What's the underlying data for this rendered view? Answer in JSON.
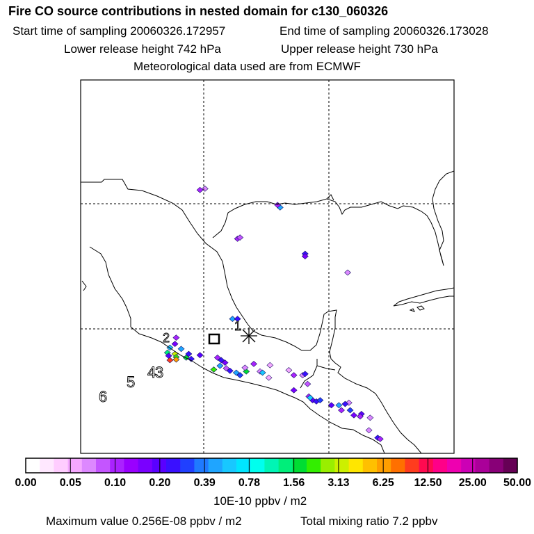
{
  "header": {
    "title": "Fire CO source contributions in nested domain for c130_060326",
    "start_sampling": "Start time of sampling 20060326.172957",
    "end_sampling": "End time of sampling 20060326.173028",
    "lower_release": "Lower release height  742 hPa",
    "upper_release": "Upper release height  730 hPa",
    "met_data": "Meteorological data used are from ECMWF"
  },
  "map": {
    "release_labels": [
      "1",
      "2",
      "3",
      "4",
      "5",
      "6"
    ],
    "release_marker": "asterisk",
    "receptor_marker": "open-square"
  },
  "colorbar": {
    "colors": [
      "#ffffff",
      "#ffe8ff",
      "#ffcdff",
      "#f5a8ff",
      "#dd88ff",
      "#c455ff",
      "#aa22ff",
      "#9900ff",
      "#7a00ff",
      "#5a00ff",
      "#3a10ff",
      "#2040ff",
      "#1f7aff",
      "#1fa5ff",
      "#18c8ff",
      "#00e6ff",
      "#00ffee",
      "#00f5b5",
      "#00ee7a",
      "#00dd33",
      "#33ee00",
      "#99ee00",
      "#ccf000",
      "#ffe600",
      "#ffc000",
      "#ff9e00",
      "#ff7000",
      "#ff3c1e",
      "#ff0a50",
      "#ff0088",
      "#ee00b0",
      "#cc00b5",
      "#aa0099",
      "#880077",
      "#660055"
    ],
    "tick_labels": [
      "0.00",
      "0.05",
      "0.10",
      "0.20",
      "0.39",
      "0.78",
      "1.56",
      "3.13",
      "6.25",
      "12.50",
      "25.00",
      "50.00"
    ],
    "units": "10E-10 ppbv / m2"
  },
  "footer": {
    "max_value": "Maximum value  0.256E-08 ppbv / m2",
    "total_mixing": "Total mixing ratio       7.2 ppbv"
  },
  "plumes": [
    {
      "lon": -95.3,
      "lat": 31.1,
      "color": "#aa22ff"
    },
    {
      "lon": -94.9,
      "lat": 31.2,
      "color": "#dd88ff"
    },
    {
      "lon": -88.9,
      "lat": 29.7,
      "color": "#1fa5ff"
    },
    {
      "lon": -89.1,
      "lat": 29.9,
      "color": "#aa22ff"
    },
    {
      "lon": -92.3,
      "lat": 27.2,
      "color": "#aa22ff"
    },
    {
      "lon": -92.1,
      "lat": 27.3,
      "color": "#c455ff"
    },
    {
      "lon": -86.9,
      "lat": 26.0,
      "color": "#3a10ff"
    },
    {
      "lon": -86.9,
      "lat": 25.8,
      "color": "#7a00ff"
    },
    {
      "lon": -83.5,
      "lat": 24.5,
      "color": "#dd88ff"
    },
    {
      "lon": -92.7,
      "lat": 20.8,
      "color": "#1fa5ff"
    },
    {
      "lon": -92.3,
      "lat": 20.8,
      "color": "#3a10ff"
    },
    {
      "lon": -97.2,
      "lat": 19.3,
      "color": "#aa22ff"
    },
    {
      "lon": -97.3,
      "lat": 18.8,
      "color": "#7a00ff"
    },
    {
      "lon": -97.7,
      "lat": 18.5,
      "color": "#18c8ff"
    },
    {
      "lon": -96.8,
      "lat": 18.4,
      "color": "#1fa5ff"
    },
    {
      "lon": -96.2,
      "lat": 18.0,
      "color": "#3a10ff"
    },
    {
      "lon": -97.9,
      "lat": 18.1,
      "color": "#00ee7a"
    },
    {
      "lon": -97.3,
      "lat": 18.0,
      "color": "#ccf000"
    },
    {
      "lon": -97.8,
      "lat": 17.85,
      "color": "#5a00ff"
    },
    {
      "lon": -97.2,
      "lat": 17.75,
      "color": "#33ee00"
    },
    {
      "lon": -97.7,
      "lat": 17.5,
      "color": "#ff3c1e"
    },
    {
      "lon": -97.2,
      "lat": 17.55,
      "color": "#ff9e00"
    },
    {
      "lon": -96.4,
      "lat": 17.7,
      "color": "#00dd33"
    },
    {
      "lon": -96.0,
      "lat": 17.6,
      "color": "#3a10ff"
    },
    {
      "lon": -95.3,
      "lat": 17.9,
      "color": "#5a00ff"
    },
    {
      "lon": -93.9,
      "lat": 17.7,
      "color": "#aa22ff"
    },
    {
      "lon": -93.6,
      "lat": 17.5,
      "color": "#3a10ff"
    },
    {
      "lon": -93.3,
      "lat": 17.3,
      "color": "#7a00ff"
    },
    {
      "lon": -93.7,
      "lat": 17.05,
      "color": "#1fa5ff"
    },
    {
      "lon": -94.2,
      "lat": 16.75,
      "color": "#33ee00"
    },
    {
      "lon": -93.2,
      "lat": 16.85,
      "color": "#c455ff"
    },
    {
      "lon": -92.9,
      "lat": 16.65,
      "color": "#3a10ff"
    },
    {
      "lon": -92.4,
      "lat": 16.5,
      "color": "#1fa5ff"
    },
    {
      "lon": -92.1,
      "lat": 16.3,
      "color": "#2040ff"
    },
    {
      "lon": -91.6,
      "lat": 16.6,
      "color": "#00dd33"
    },
    {
      "lon": -91.7,
      "lat": 16.9,
      "color": "#dd88ff"
    },
    {
      "lon": -90.5,
      "lat": 16.6,
      "color": "#dd88ff"
    },
    {
      "lon": -90.3,
      "lat": 16.5,
      "color": "#18c8ff"
    },
    {
      "lon": -89.7,
      "lat": 17.1,
      "color": "#f5a8ff"
    },
    {
      "lon": -91.0,
      "lat": 17.2,
      "color": "#aa22ff"
    },
    {
      "lon": -89.8,
      "lat": 16.1,
      "color": "#f5a8ff"
    },
    {
      "lon": -88.2,
      "lat": 16.7,
      "color": "#f5a8ff"
    },
    {
      "lon": -87.8,
      "lat": 16.3,
      "color": "#aa22ff"
    },
    {
      "lon": -87.1,
      "lat": 16.3,
      "color": "#dd88ff"
    },
    {
      "lon": -86.9,
      "lat": 16.4,
      "color": "#3a10ff"
    },
    {
      "lon": -86.7,
      "lat": 15.6,
      "color": "#c455ff"
    },
    {
      "lon": -87.8,
      "lat": 15.1,
      "color": "#7a00ff"
    },
    {
      "lon": -86.6,
      "lat": 14.6,
      "color": "#aa22ff"
    },
    {
      "lon": -86.3,
      "lat": 14.3,
      "color": "#5a00ff"
    },
    {
      "lon": -86.5,
      "lat": 14.5,
      "color": "#18c8ff"
    },
    {
      "lon": -86.0,
      "lat": 14.2,
      "color": "#3a10ff"
    },
    {
      "lon": -85.7,
      "lat": 14.3,
      "color": "#2040ff"
    },
    {
      "lon": -84.8,
      "lat": 13.9,
      "color": "#5a00ff"
    },
    {
      "lon": -84.2,
      "lat": 13.9,
      "color": "#1fa5ff"
    },
    {
      "lon": -84.0,
      "lat": 13.5,
      "color": "#aa22ff"
    },
    {
      "lon": -83.4,
      "lat": 14.1,
      "color": "#dd88ff"
    },
    {
      "lon": -83.7,
      "lat": 14.0,
      "color": "#3a10ff"
    },
    {
      "lon": -83.3,
      "lat": 13.5,
      "color": "#2040ff"
    },
    {
      "lon": -83.0,
      "lat": 13.1,
      "color": "#7a00ff"
    },
    {
      "lon": -82.4,
      "lat": 13.2,
      "color": "#5a00ff"
    },
    {
      "lon": -82.5,
      "lat": 13.0,
      "color": "#aa22ff"
    },
    {
      "lon": -81.7,
      "lat": 12.9,
      "color": "#dd88ff"
    },
    {
      "lon": -81.1,
      "lat": 11.3,
      "color": "#3a10ff"
    },
    {
      "lon": -80.9,
      "lat": 11.2,
      "color": "#aa22ff"
    },
    {
      "lon": -81.8,
      "lat": 11.9,
      "color": "#dd88ff"
    }
  ]
}
